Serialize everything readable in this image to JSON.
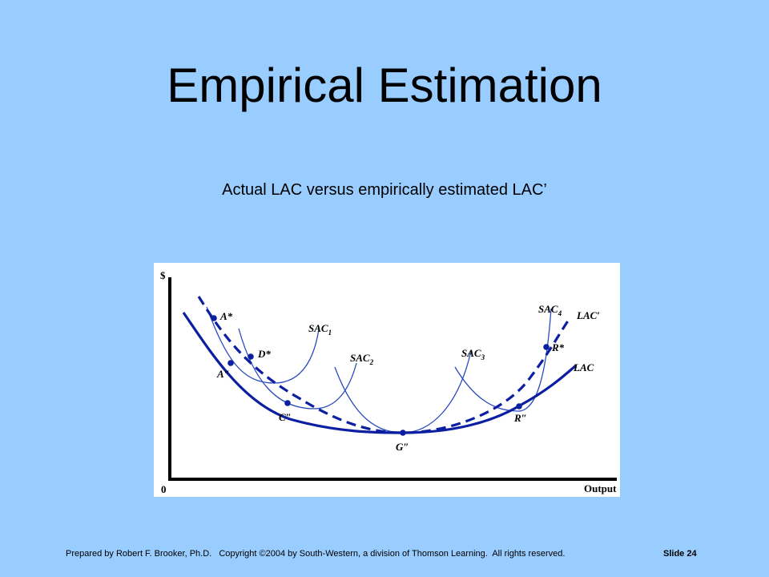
{
  "slide": {
    "title": "Empirical Estimation",
    "subtitle": "Actual LAC versus empirically estimated LAC’",
    "footer_text": "Prepared by Robert F. Brooker, Ph.D.   Copyright ©2004 by South-Western, a division of Thomson Learning.  All rights reserved.",
    "slide_number": "Slide 24"
  },
  "diagram": {
    "y_axis_label": "$",
    "x_axis_label": "Output",
    "origin_label": "0",
    "curve_labels": {
      "lac": "LAC",
      "lac_prime": "LAC′",
      "sac1": "SAC",
      "sac1_sub": "1",
      "sac2": "SAC",
      "sac2_sub": "2",
      "sac3": "SAC",
      "sac3_sub": "3",
      "sac4": "SAC",
      "sac4_sub": "4"
    },
    "point_labels": {
      "a_star": "A*",
      "d_star": "D*",
      "r_star": "R*",
      "a_dprime": "A″",
      "c_dprime": "C″",
      "g_dprime": "G″",
      "r_dprime": "R″"
    },
    "colors": {
      "curve": "#0b1fa0",
      "thin_curve": "#2a4bc0",
      "axis": "#000000"
    }
  }
}
